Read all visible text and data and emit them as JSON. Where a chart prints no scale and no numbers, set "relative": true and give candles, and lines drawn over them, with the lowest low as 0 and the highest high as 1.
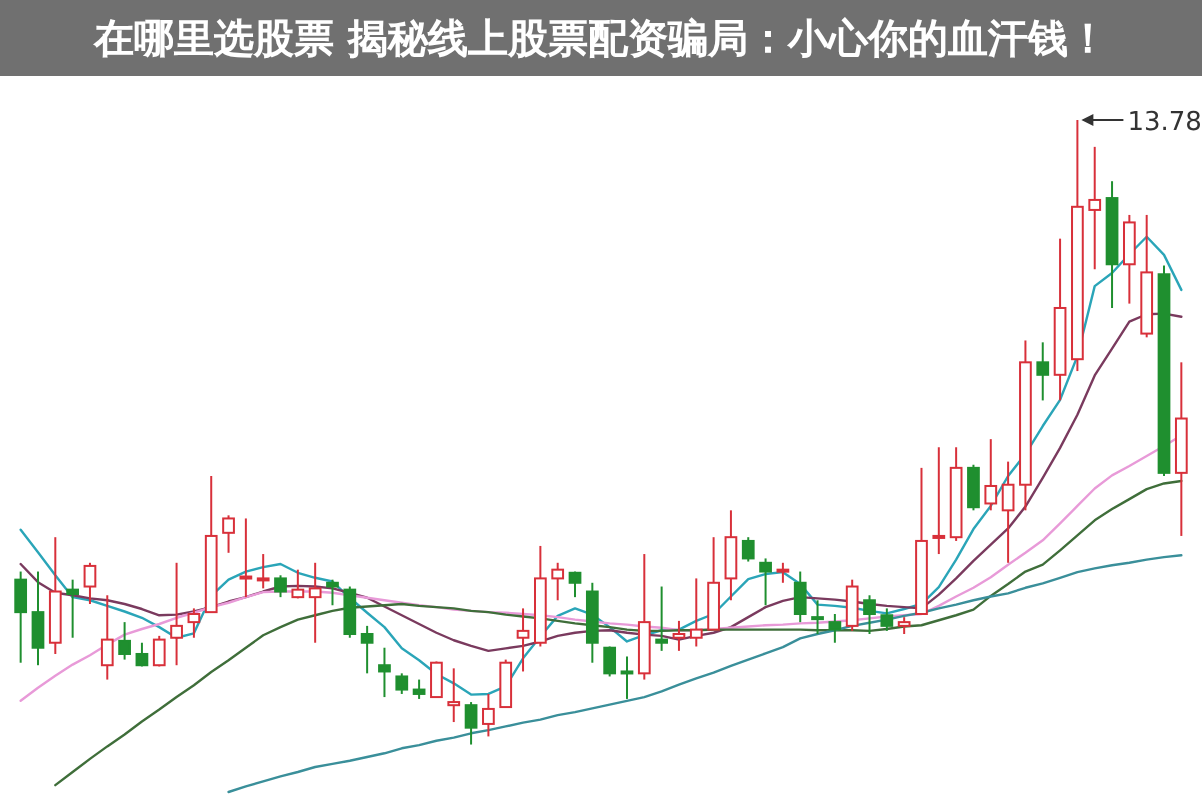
{
  "chart_data": {
    "type": "candlestick",
    "title": "在哪里选股票 揭秘线上股票配资骗局：小心你的血汗钱！",
    "relative": true,
    "categories": [
      null,
      null,
      null,
      null,
      null,
      null,
      null,
      null,
      null,
      null,
      null,
      null,
      null,
      null,
      null,
      null,
      null,
      null,
      null,
      null,
      null,
      null,
      null,
      null,
      null,
      null,
      null,
      null,
      null,
      null,
      null,
      null,
      null,
      null,
      null,
      null,
      null,
      null,
      null,
      null,
      null,
      null,
      null,
      null,
      null,
      null,
      null,
      null,
      null,
      null,
      null,
      null,
      null,
      null,
      null,
      null,
      null,
      null,
      null,
      null,
      null,
      null,
      null,
      null,
      null,
      null,
      null,
      null
    ],
    "ohlc": [
      [
        0.264,
        0.277,
        0.131,
        0.212
      ],
      [
        0.212,
        0.277,
        0.127,
        0.155
      ],
      [
        0.163,
        0.332,
        0.145,
        0.245
      ],
      [
        0.248,
        0.264,
        0.171,
        0.241
      ],
      [
        0.253,
        0.291,
        0.225,
        0.286
      ],
      [
        0.127,
        0.239,
        0.104,
        0.168
      ],
      [
        0.166,
        0.196,
        0.136,
        0.145
      ],
      [
        0.145,
        0.163,
        0.125,
        0.127
      ],
      [
        0.127,
        0.174,
        0.125,
        0.168
      ],
      [
        0.171,
        0.291,
        0.127,
        0.19
      ],
      [
        0.196,
        0.218,
        0.171,
        0.209
      ],
      [
        0.212,
        0.43,
        0.212,
        0.334
      ],
      [
        0.339,
        0.367,
        0.307,
        0.362
      ],
      [
        0.266,
        0.362,
        0.236,
        0.269
      ],
      [
        0.264,
        0.305,
        0.25,
        0.266
      ],
      [
        0.266,
        0.271,
        0.236,
        0.245
      ],
      [
        0.236,
        0.28,
        0.234,
        0.248
      ],
      [
        0.236,
        0.291,
        0.163,
        0.25
      ],
      [
        0.259,
        0.264,
        0.223,
        0.253
      ],
      [
        0.248,
        0.253,
        0.171,
        0.177
      ],
      [
        0.177,
        0.19,
        0.114,
        0.163
      ],
      [
        0.127,
        0.155,
        0.076,
        0.117
      ],
      [
        0.109,
        0.114,
        0.081,
        0.088
      ],
      [
        0.088,
        0.104,
        0.073,
        0.081
      ],
      [
        0.076,
        0.133,
        0.076,
        0.131
      ],
      [
        0.063,
        0.122,
        0.036,
        0.068
      ],
      [
        0.063,
        0.068,
        0.0,
        0.027
      ],
      [
        0.033,
        0.081,
        0.013,
        0.057
      ],
      [
        0.06,
        0.136,
        0.06,
        0.131
      ],
      [
        0.171,
        0.218,
        0.117,
        0.182
      ],
      [
        0.163,
        0.318,
        0.157,
        0.266
      ],
      [
        0.266,
        0.291,
        0.231,
        0.28
      ],
      [
        0.275,
        0.277,
        0.236,
        0.259
      ],
      [
        0.245,
        0.259,
        0.131,
        0.163
      ],
      [
        0.155,
        0.157,
        0.109,
        0.114
      ],
      [
        0.117,
        0.141,
        0.073,
        0.114
      ],
      [
        0.114,
        0.305,
        0.104,
        0.196
      ],
      [
        0.168,
        0.253,
        0.15,
        0.163
      ],
      [
        0.171,
        0.198,
        0.15,
        0.177
      ],
      [
        0.171,
        0.266,
        0.157,
        0.184
      ],
      [
        0.184,
        0.332,
        0.184,
        0.259
      ],
      [
        0.266,
        0.375,
        0.231,
        0.332
      ],
      [
        0.326,
        0.332,
        0.293,
        0.298
      ],
      [
        0.291,
        0.298,
        0.223,
        0.277
      ],
      [
        0.277,
        0.291,
        0.259,
        0.28
      ],
      [
        0.259,
        0.277,
        0.196,
        0.209
      ],
      [
        0.204,
        0.231,
        0.177,
        0.202
      ],
      [
        0.196,
        0.209,
        0.163,
        0.184
      ],
      [
        0.19,
        0.264,
        0.182,
        0.253
      ],
      [
        0.231,
        0.239,
        0.177,
        0.209
      ],
      [
        0.207,
        0.218,
        0.182,
        0.19
      ],
      [
        0.19,
        0.204,
        0.177,
        0.196
      ],
      [
        0.209,
        0.443,
        0.209,
        0.326
      ],
      [
        0.332,
        0.476,
        0.305,
        0.334
      ],
      [
        0.332,
        0.476,
        0.326,
        0.443
      ],
      [
        0.443,
        0.448,
        0.375,
        0.38
      ],
      [
        0.386,
        0.489,
        0.375,
        0.414
      ],
      [
        0.375,
        0.453,
        0.291,
        0.416
      ],
      [
        0.416,
        0.647,
        0.375,
        0.612
      ],
      [
        0.612,
        0.644,
        0.551,
        0.592
      ],
      [
        0.592,
        0.81,
        0.551,
        0.699
      ],
      [
        0.617,
        1.0,
        0.598,
        0.861
      ],
      [
        0.856,
        0.957,
        0.761,
        0.872
      ],
      [
        0.875,
        0.902,
        0.699,
        0.769
      ],
      [
        0.769,
        0.848,
        0.706,
        0.836
      ],
      [
        0.658,
        0.848,
        0.652,
        0.756
      ],
      [
        0.753,
        0.767,
        0.43,
        0.435
      ],
      [
        0.435,
        0.612,
        0.334,
        0.522
      ]
    ],
    "colors": [
      "#1f8f2f",
      "#1f8f2f",
      "#d8303a",
      "#1f8f2f",
      "#d8303a",
      "#d8303a",
      "#1f8f2f",
      "#1f8f2f",
      "#d8303a",
      "#d8303a",
      "#d8303a",
      "#d8303a",
      "#d8303a",
      "#d8303a",
      "#d8303a",
      "#1f8f2f",
      "#d8303a",
      "#d8303a",
      "#1f8f2f",
      "#1f8f2f",
      "#1f8f2f",
      "#1f8f2f",
      "#1f8f2f",
      "#1f8f2f",
      "#d8303a",
      "#d8303a",
      "#1f8f2f",
      "#d8303a",
      "#d8303a",
      "#d8303a",
      "#d8303a",
      "#d8303a",
      "#1f8f2f",
      "#1f8f2f",
      "#1f8f2f",
      "#1f8f2f",
      "#d8303a",
      "#1f8f2f",
      "#d8303a",
      "#d8303a",
      "#d8303a",
      "#d8303a",
      "#1f8f2f",
      "#1f8f2f",
      "#d8303a",
      "#1f8f2f",
      "#1f8f2f",
      "#1f8f2f",
      "#d8303a",
      "#1f8f2f",
      "#1f8f2f",
      "#d8303a",
      "#d8303a",
      "#d8303a",
      "#d8303a",
      "#1f8f2f",
      "#d8303a",
      "#d8303a",
      "#d8303a",
      "#1f8f2f",
      "#d8303a",
      "#d8303a",
      "#d8303a",
      "#1f8f2f",
      "#d8303a",
      "#d8303a",
      "#1f8f2f",
      "#d8303a"
    ],
    "series": [
      {
        "type": "line",
        "color": "#2aa5b8",
        "values": [
          0.344,
          0.308,
          0.271,
          0.236,
          0.231,
          0.222,
          0.213,
          0.203,
          0.188,
          0.171,
          0.178,
          0.238,
          0.264,
          0.277,
          0.284,
          0.289,
          0.275,
          0.267,
          0.261,
          0.235,
          0.211,
          0.188,
          0.154,
          0.135,
          0.113,
          0.098,
          0.08,
          0.081,
          0.093,
          0.138,
          0.173,
          0.206,
          0.218,
          0.208,
          0.188,
          0.165,
          0.175,
          0.183,
          0.184,
          0.198,
          0.209,
          0.237,
          0.265,
          0.273,
          0.276,
          0.257,
          0.224,
          0.222,
          0.219,
          0.214,
          0.21,
          0.217,
          0.225,
          0.252,
          0.296,
          0.345,
          0.382,
          0.43,
          0.465,
          0.51,
          0.552,
          0.622,
          0.734,
          0.755,
          0.785,
          0.813,
          0.784,
          0.728
        ]
      },
      {
        "type": "line",
        "color": "#7a3a5e",
        "values": [
          0.289,
          0.26,
          0.243,
          0.239,
          0.234,
          0.231,
          0.225,
          0.217,
          0.207,
          0.208,
          0.213,
          0.22,
          0.229,
          0.236,
          0.245,
          0.253,
          0.254,
          0.253,
          0.25,
          0.243,
          0.235,
          0.221,
          0.207,
          0.193,
          0.179,
          0.167,
          0.158,
          0.15,
          0.154,
          0.158,
          0.165,
          0.174,
          0.179,
          0.182,
          0.183,
          0.179,
          0.176,
          0.174,
          0.168,
          0.174,
          0.179,
          0.188,
          0.204,
          0.22,
          0.23,
          0.236,
          0.234,
          0.232,
          0.229,
          0.225,
          0.222,
          0.22,
          0.218,
          0.24,
          0.266,
          0.294,
          0.32,
          0.346,
          0.381,
          0.427,
          0.475,
          0.528,
          0.591,
          0.634,
          0.677,
          0.689,
          0.69,
          0.685
        ]
      },
      {
        "type": "line",
        "color": "#e89ad8",
        "values": [
          0.07,
          0.091,
          0.11,
          0.128,
          0.143,
          0.16,
          0.176,
          0.185,
          0.193,
          0.203,
          0.211,
          0.22,
          0.227,
          0.236,
          0.244,
          0.245,
          0.245,
          0.245,
          0.243,
          0.239,
          0.235,
          0.231,
          0.227,
          0.223,
          0.22,
          0.216,
          0.214,
          0.212,
          0.211,
          0.209,
          0.207,
          0.204,
          0.2,
          0.197,
          0.194,
          0.192,
          0.189,
          0.187,
          0.183,
          0.183,
          0.185,
          0.187,
          0.189,
          0.191,
          0.192,
          0.194,
          0.195,
          0.197,
          0.199,
          0.202,
          0.205,
          0.207,
          0.209,
          0.222,
          0.237,
          0.251,
          0.268,
          0.288,
          0.307,
          0.327,
          0.354,
          0.382,
          0.41,
          0.431,
          0.446,
          0.462,
          0.478,
          0.495
        ]
      },
      {
        "type": "line",
        "color": "#3f6e3a",
        "values": [
          null,
          null,
          -0.065,
          -0.044,
          -0.023,
          -0.003,
          0.016,
          0.037,
          0.056,
          0.076,
          0.095,
          0.116,
          0.135,
          0.155,
          0.175,
          0.188,
          0.2,
          0.207,
          0.214,
          0.219,
          0.221,
          0.223,
          0.225,
          0.222,
          0.22,
          0.218,
          0.214,
          0.212,
          0.208,
          0.205,
          0.202,
          0.198,
          0.194,
          0.191,
          0.188,
          0.184,
          0.182,
          0.182,
          0.183,
          0.183,
          0.184,
          0.184,
          0.184,
          0.184,
          0.184,
          0.184,
          0.183,
          0.183,
          0.183,
          0.182,
          0.185,
          0.189,
          0.191,
          0.199,
          0.207,
          0.216,
          0.238,
          0.257,
          0.277,
          0.288,
          0.311,
          0.335,
          0.359,
          0.377,
          0.393,
          0.409,
          0.418,
          0.422
        ]
      },
      {
        "type": "line",
        "color": "#3a8f9a",
        "values": [
          null,
          null,
          null,
          null,
          null,
          null,
          null,
          null,
          null,
          null,
          null,
          null,
          -0.076,
          -0.067,
          -0.059,
          -0.051,
          -0.044,
          -0.036,
          -0.031,
          -0.026,
          -0.02,
          -0.014,
          -0.006,
          -0.001,
          0.006,
          0.011,
          0.018,
          0.023,
          0.029,
          0.035,
          0.04,
          0.047,
          0.052,
          0.058,
          0.064,
          0.07,
          0.076,
          0.085,
          0.096,
          0.106,
          0.115,
          0.126,
          0.136,
          0.146,
          0.156,
          0.17,
          0.177,
          0.183,
          0.19,
          0.195,
          0.2,
          0.206,
          0.211,
          0.218,
          0.224,
          0.231,
          0.237,
          0.242,
          0.251,
          0.258,
          0.267,
          0.276,
          0.282,
          0.287,
          0.291,
          0.296,
          0.3,
          0.303
        ]
      }
    ],
    "annotations": [
      "13.78"
    ]
  }
}
